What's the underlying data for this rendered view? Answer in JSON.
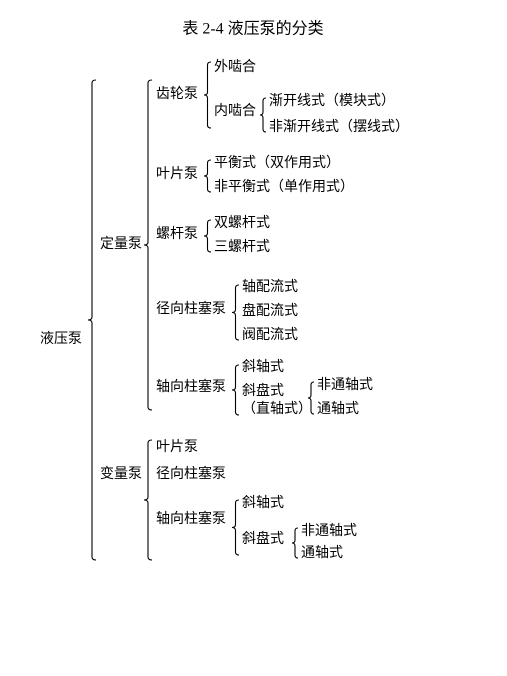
{
  "title": "表 2-4  液压泵的分类",
  "root": "液压泵",
  "dl": "定量泵",
  "bl": "变量泵",
  "dl_gear": "齿轮泵",
  "dl_vane": "叶片泵",
  "dl_screw": "螺杆泵",
  "dl_radial": "径向柱塞泵",
  "dl_axial": "轴向柱塞泵",
  "gear_ext": "外啮合",
  "gear_int": "内啮合",
  "gear_int_a": "渐开线式（模块式）",
  "gear_int_b": "非渐开线式（摆线式）",
  "vane_a": "平衡式（双作用式）",
  "vane_b": "非平衡式（单作用式）",
  "screw_a": "双螺杆式",
  "screw_b": "三螺杆式",
  "radial_a": "轴配流式",
  "radial_b": "盘配流式",
  "radial_c": "阀配流式",
  "axial_a": "斜轴式",
  "axial_b1": "斜盘式",
  "axial_b2": "（直轴式）",
  "axial_b_sub_a": "非通轴式",
  "axial_b_sub_b": "通轴式",
  "bl_vane": "叶片泵",
  "bl_radial": "径向柱塞泵",
  "bl_axial": "轴向柱塞泵",
  "bl_ax_a": "斜轴式",
  "bl_ax_b": "斜盘式",
  "bl_ax_b_sub_a": "非通轴式",
  "bl_ax_b_sub_b": "通轴式",
  "fs_title": 16,
  "fs_node": 14,
  "stroke": "#000000",
  "sw": 1.1
}
